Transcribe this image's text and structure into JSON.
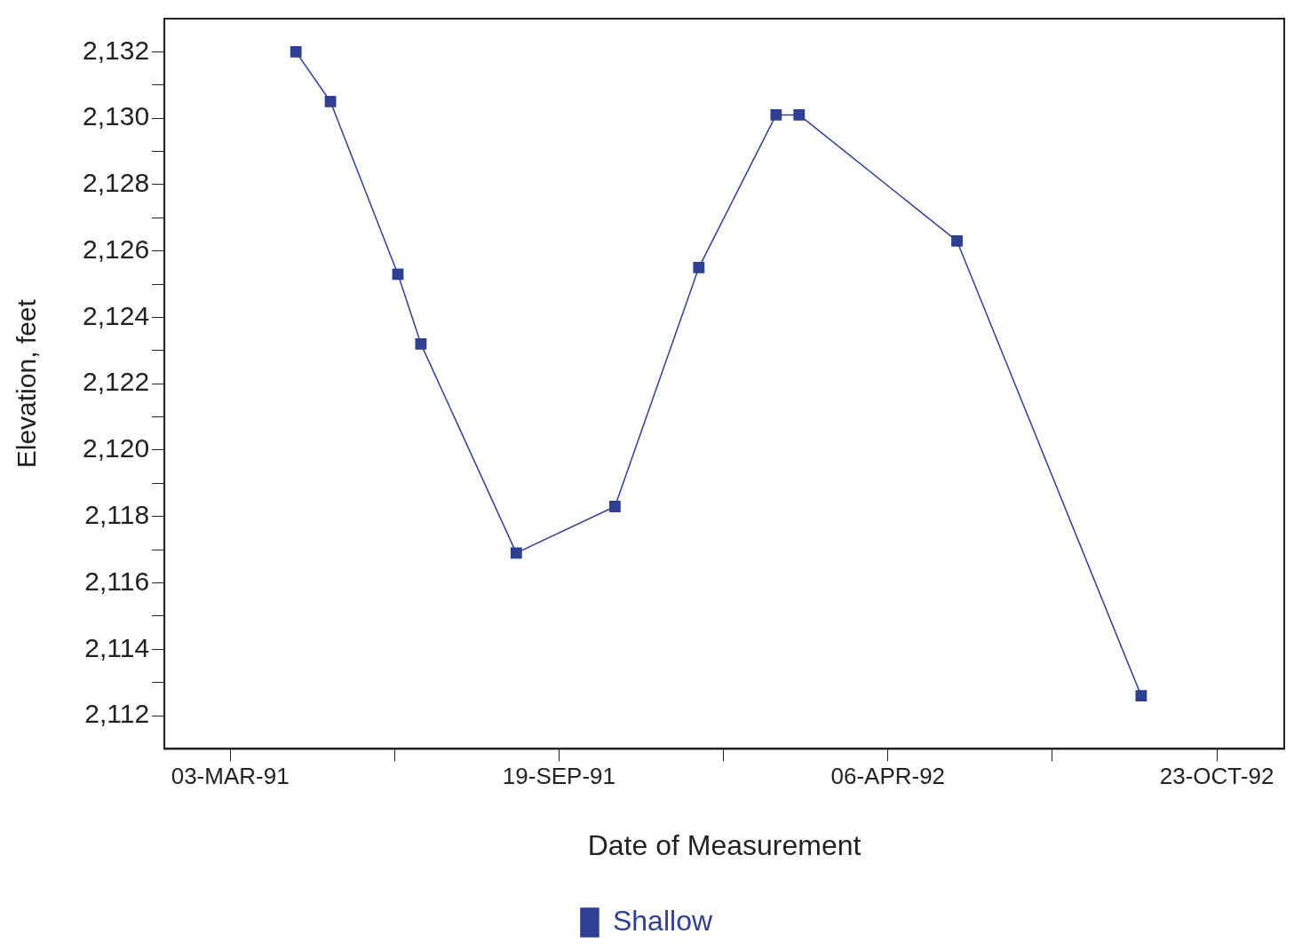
{
  "chart_data": {
    "type": "line",
    "xlabel": "Date of Measurement",
    "ylabel": "Elevation, feet",
    "xlim": [
      "1991-01-22",
      "1992-12-03"
    ],
    "xticks": [
      {
        "value": "1991-03-03",
        "label": "03-MAR-91"
      },
      {
        "value": "1991-06-11",
        "label": null
      },
      {
        "value": "1991-09-19",
        "label": "19-SEP-91"
      },
      {
        "value": "1991-12-28",
        "label": null
      },
      {
        "value": "1992-04-06",
        "label": "06-APR-92"
      },
      {
        "value": "1992-07-15",
        "label": null
      },
      {
        "value": "1992-10-23",
        "label": "23-OCT-92"
      }
    ],
    "ylim": [
      2111,
      2133
    ],
    "yticks": [
      {
        "value": 2112,
        "label": "2,112"
      },
      {
        "value": 2113,
        "label": null
      },
      {
        "value": 2114,
        "label": "2,114"
      },
      {
        "value": 2115,
        "label": null
      },
      {
        "value": 2116,
        "label": "2,116"
      },
      {
        "value": 2117,
        "label": null
      },
      {
        "value": 2118,
        "label": "2,118"
      },
      {
        "value": 2119,
        "label": null
      },
      {
        "value": 2120,
        "label": "2,120"
      },
      {
        "value": 2121,
        "label": null
      },
      {
        "value": 2122,
        "label": "2,122"
      },
      {
        "value": 2123,
        "label": null
      },
      {
        "value": 2124,
        "label": "2,124"
      },
      {
        "value": 2125,
        "label": null
      },
      {
        "value": 2126,
        "label": "2,126"
      },
      {
        "value": 2127,
        "label": null
      },
      {
        "value": 2128,
        "label": "2,128"
      },
      {
        "value": 2129,
        "label": null
      },
      {
        "value": 2130,
        "label": "2,130"
      },
      {
        "value": 2131,
        "label": null
      },
      {
        "value": 2132,
        "label": "2,132"
      }
    ],
    "series": [
      {
        "name": "Shallow",
        "color": "#2e3f94",
        "x": [
          "1991-04-12",
          "1991-05-03",
          "1991-06-13",
          "1991-06-27",
          "1991-08-24",
          "1991-10-23",
          "1991-12-13",
          "1992-01-29",
          "1992-02-12",
          "1992-05-18",
          "1992-09-07"
        ],
        "values": [
          2132.0,
          2130.5,
          2125.3,
          2123.2,
          2116.9,
          2118.3,
          2125.5,
          2130.1,
          2130.1,
          2126.3,
          2112.6
        ]
      }
    ],
    "marker": "square",
    "line_style": "solid",
    "grid": false,
    "legend": "bottom"
  }
}
